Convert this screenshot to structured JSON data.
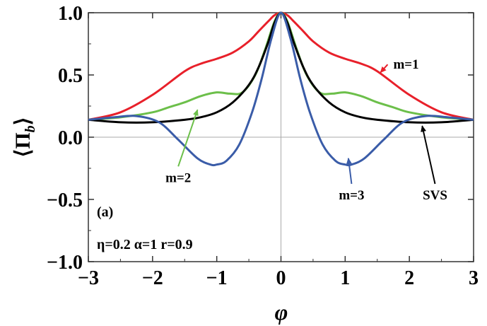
{
  "chart_data": {
    "type": "line",
    "xlabel": "φ",
    "ylabel": "⟨Π_b⟩",
    "xlim": [
      -3,
      3
    ],
    "ylim": [
      -1.0,
      1.0
    ],
    "xticks": [
      "−3",
      "−2",
      "−1",
      "0",
      "1",
      "2",
      "3"
    ],
    "yticks": [
      "1.0",
      "0.5",
      "0.0",
      "−0.5",
      "−1.0"
    ],
    "grid": false,
    "panel_label": "(a)",
    "params_text": "η=0.2 α=1 r=0.9",
    "series": [
      {
        "name": "m=1",
        "color": "#e8202a",
        "x": [
          -3,
          -2.5,
          -2,
          -1.5,
          -1.25,
          -1,
          -0.75,
          -0.5,
          -0.35,
          -0.2,
          -0.1,
          0,
          0.1,
          0.2,
          0.35,
          0.5,
          0.75,
          1,
          1.25,
          1.5,
          2,
          2.5,
          3
        ],
        "y": [
          0.14,
          0.2,
          0.34,
          0.53,
          0.59,
          0.63,
          0.68,
          0.77,
          0.85,
          0.93,
          0.98,
          1.0,
          0.98,
          0.93,
          0.85,
          0.77,
          0.68,
          0.63,
          0.59,
          0.53,
          0.34,
          0.2,
          0.14
        ]
      },
      {
        "name": "m=2",
        "color": "#6cbf4a",
        "x": [
          -3,
          -2.5,
          -2,
          -1.75,
          -1.5,
          -1.25,
          -1,
          -0.8,
          -0.6,
          -0.4,
          -0.25,
          -0.1,
          0,
          0.1,
          0.25,
          0.4,
          0.6,
          0.8,
          1,
          1.25,
          1.5,
          1.75,
          2,
          2.5,
          3
        ],
        "y": [
          0.14,
          0.16,
          0.2,
          0.24,
          0.28,
          0.33,
          0.36,
          0.35,
          0.36,
          0.5,
          0.7,
          0.93,
          1.0,
          0.93,
          0.7,
          0.5,
          0.36,
          0.35,
          0.36,
          0.33,
          0.28,
          0.24,
          0.2,
          0.16,
          0.14
        ]
      },
      {
        "name": "m=3",
        "color": "#3a5ca8",
        "x": [
          -3,
          -2.6,
          -2.25,
          -1.9,
          -1.6,
          -1.3,
          -1.1,
          -1,
          -0.85,
          -0.65,
          -0.45,
          -0.3,
          -0.15,
          0,
          0.15,
          0.3,
          0.45,
          0.65,
          0.85,
          1,
          1.1,
          1.3,
          1.6,
          1.9,
          2.25,
          2.6,
          3
        ],
        "y": [
          0.14,
          0.16,
          0.17,
          0.12,
          -0.02,
          -0.17,
          -0.22,
          -0.22,
          -0.19,
          -0.06,
          0.2,
          0.47,
          0.79,
          1.0,
          0.79,
          0.47,
          0.2,
          -0.06,
          -0.19,
          -0.22,
          -0.22,
          -0.17,
          -0.02,
          0.12,
          0.17,
          0.16,
          0.14
        ]
      },
      {
        "name": "SVS",
        "color": "#000000",
        "x": [
          -3,
          -2.5,
          -2,
          -1.5,
          -1.25,
          -1,
          -0.75,
          -0.5,
          -0.35,
          -0.2,
          -0.1,
          0,
          0.1,
          0.2,
          0.35,
          0.5,
          0.75,
          1,
          1.25,
          1.5,
          2,
          2.5,
          3
        ],
        "y": [
          0.14,
          0.12,
          0.12,
          0.14,
          0.16,
          0.2,
          0.28,
          0.42,
          0.56,
          0.76,
          0.92,
          1.0,
          0.92,
          0.76,
          0.56,
          0.42,
          0.28,
          0.2,
          0.16,
          0.14,
          0.12,
          0.12,
          0.14
        ]
      }
    ],
    "annotations": [
      {
        "label": "m=1",
        "series": 0,
        "text_pos": [
          1.75,
          0.55
        ],
        "arrow_to": [
          1.55,
          0.52
        ]
      },
      {
        "label": "m=2",
        "series": 1,
        "text_pos": [
          -1.6,
          -0.36
        ],
        "arrow_to": [
          -1.3,
          0.22
        ]
      },
      {
        "label": "m=3",
        "series": 2,
        "text_pos": [
          1.1,
          -0.5
        ],
        "arrow_to": [
          1.05,
          -0.17
        ]
      },
      {
        "label": "SVS",
        "series": 3,
        "text_pos": [
          2.4,
          -0.5
        ],
        "arrow_to": [
          2.2,
          0.09
        ]
      }
    ]
  }
}
